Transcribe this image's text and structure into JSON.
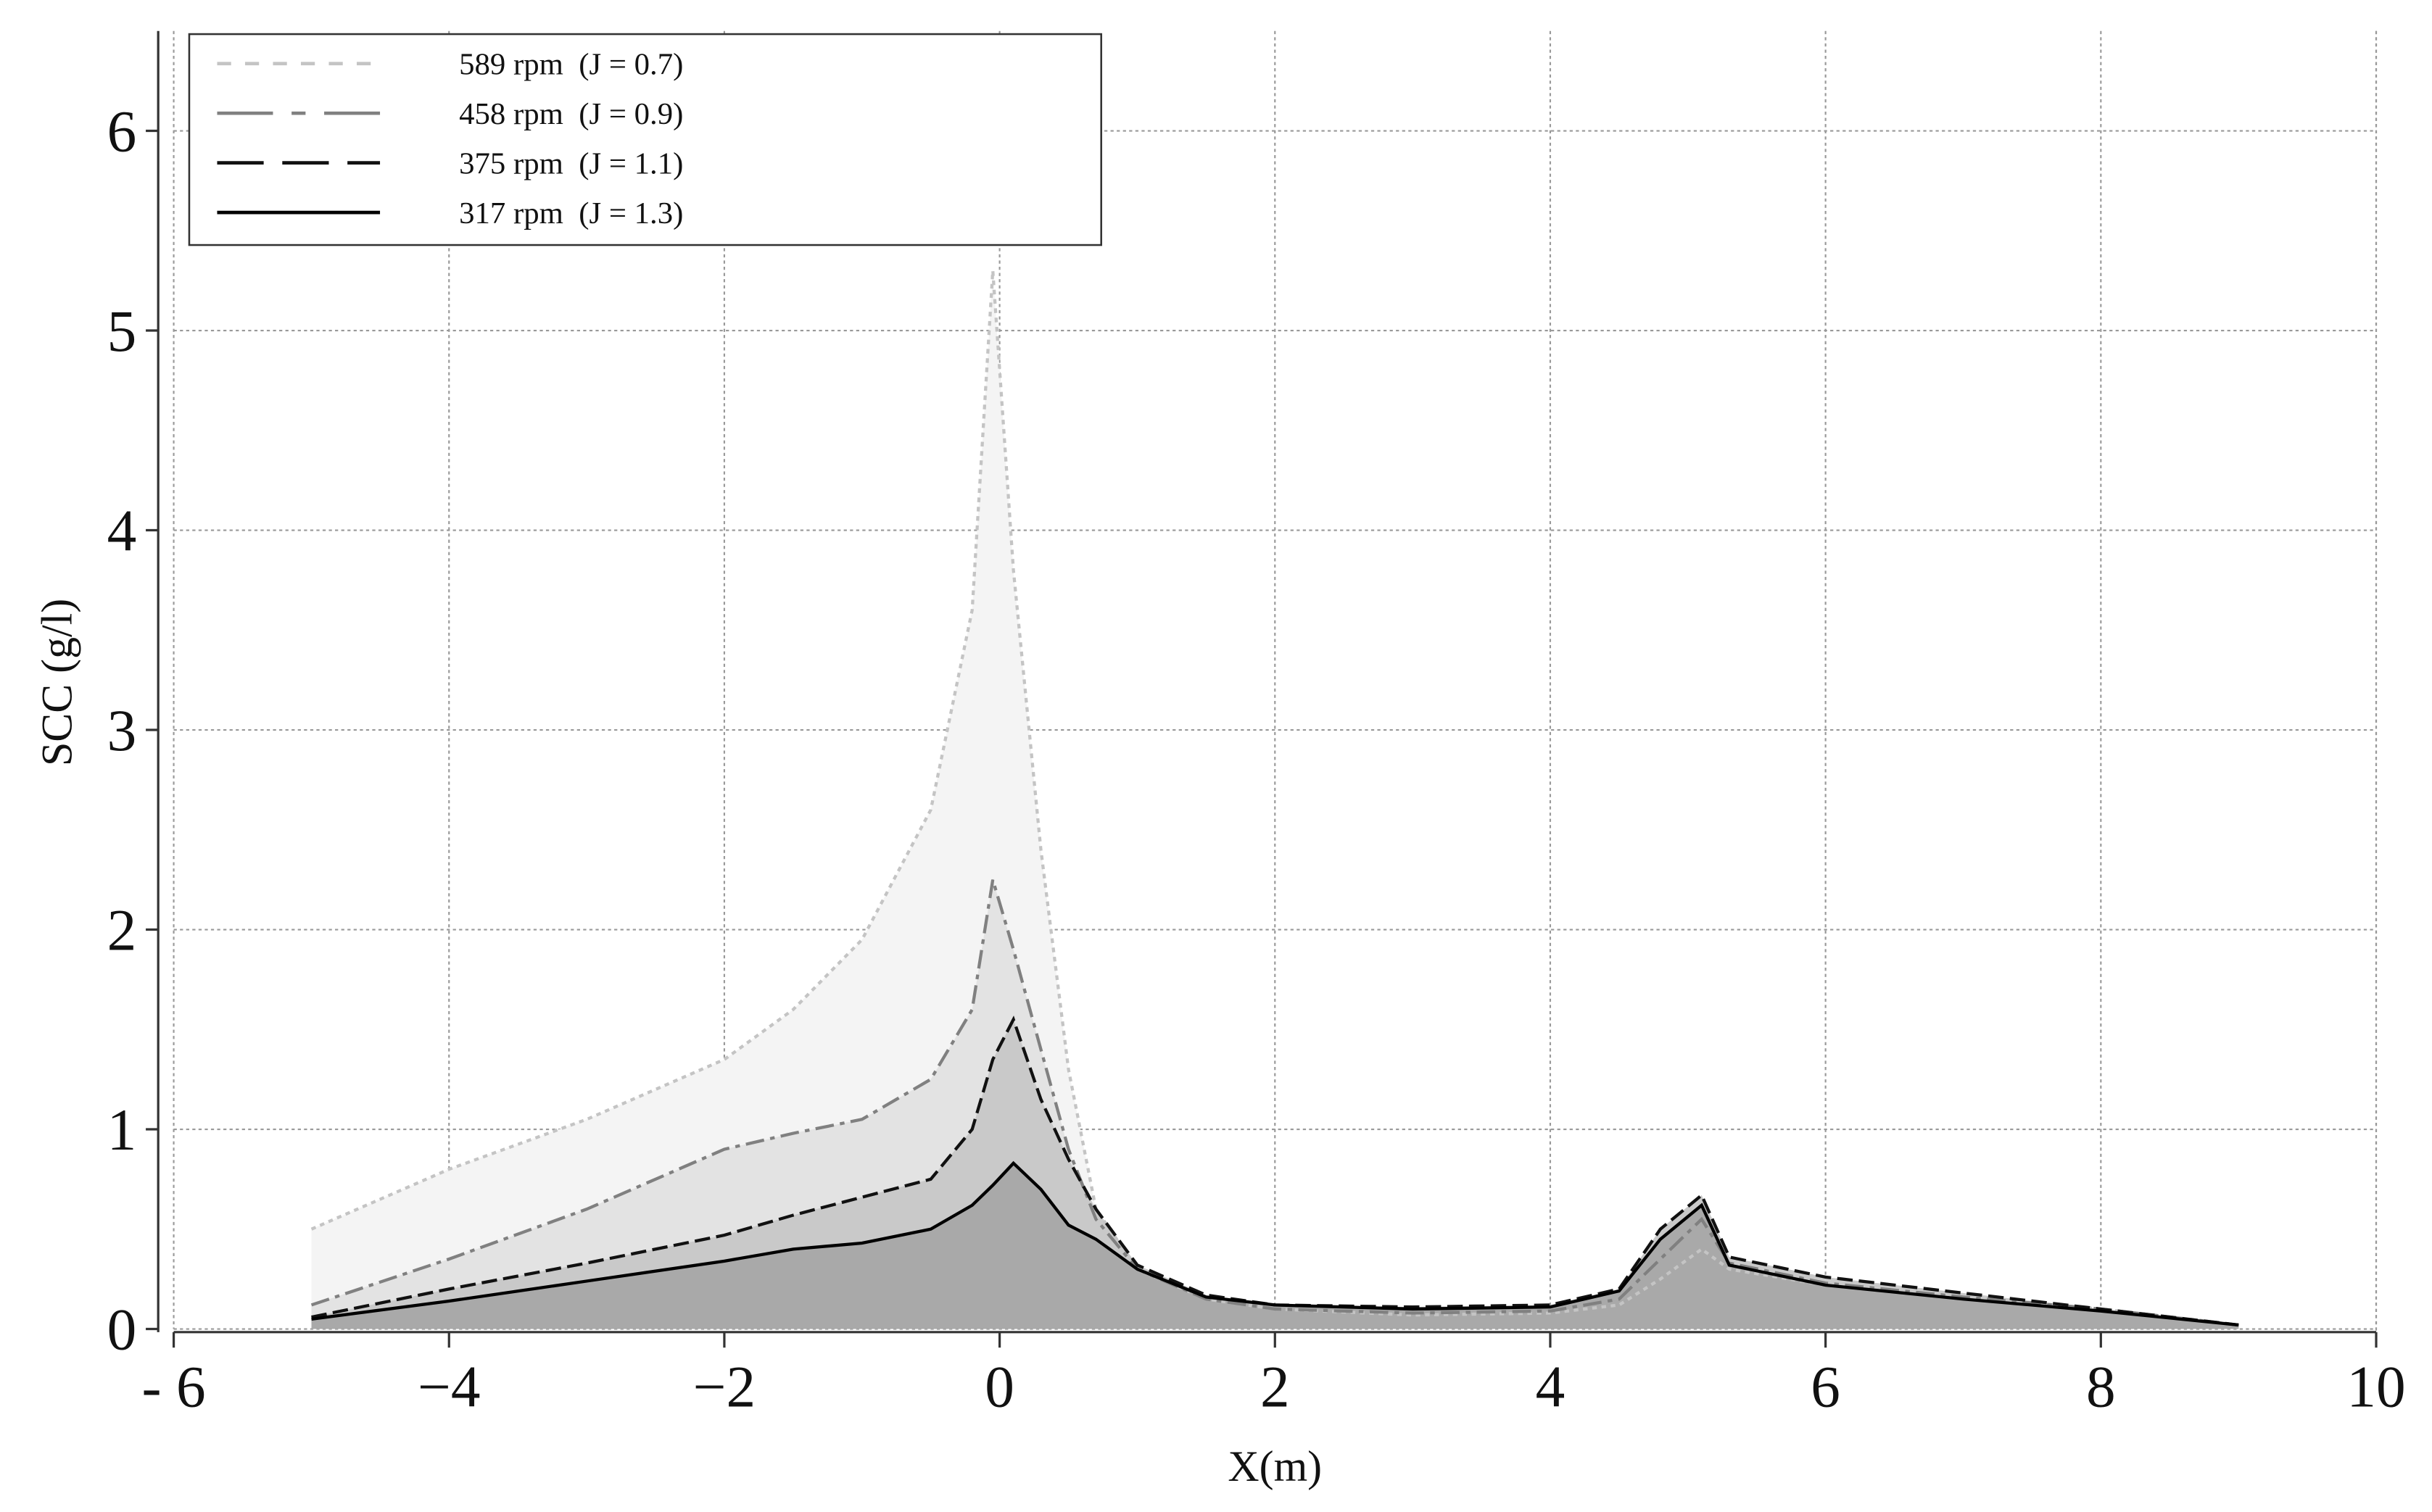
{
  "chart_data": {
    "type": "area",
    "x_label": "X(m)",
    "y_label": "SCC (g/l)",
    "x": [
      -5,
      -4,
      -3,
      -2,
      -1.5,
      -1,
      -0.5,
      -0.2,
      -0.05,
      0.1,
      0.3,
      0.5,
      0.7,
      1,
      1.5,
      2,
      3,
      4,
      4.5,
      4.8,
      5.1,
      5.3,
      6,
      7,
      8,
      9
    ],
    "xlim": [
      -6,
      10
    ],
    "ylim": [
      0,
      6.5
    ],
    "xticks": [
      {
        "value": -6,
        "label": "- 6"
      },
      {
        "value": -4,
        "label": "−4"
      },
      {
        "value": -2,
        "label": "−2"
      },
      0,
      2,
      4,
      6,
      8,
      10
    ],
    "yticks": [
      0,
      1,
      2,
      3,
      4,
      5,
      6
    ],
    "grid": true,
    "legend": "upper left",
    "series": [
      {
        "name": "589 rpm  (J = 0.7)",
        "color": "#c4c4c4",
        "fill": "#f4f4f4",
        "dash": "3 3",
        "values": [
          0.5,
          0.8,
          1.05,
          1.35,
          1.6,
          1.95,
          2.6,
          3.6,
          5.3,
          3.8,
          2.4,
          1.3,
          0.6,
          0.3,
          0.15,
          0.1,
          0.07,
          0.08,
          0.12,
          0.25,
          0.4,
          0.3,
          0.22,
          0.16,
          0.1,
          0.02
        ]
      },
      {
        "name": "458 rpm  (J = 0.9)",
        "color": "#808080",
        "fill": "#e3e3e3",
        "dash": "12 4 3 4",
        "values": [
          0.12,
          0.35,
          0.6,
          0.9,
          0.98,
          1.05,
          1.25,
          1.6,
          2.25,
          1.9,
          1.4,
          0.9,
          0.55,
          0.3,
          0.15,
          0.1,
          0.08,
          0.09,
          0.15,
          0.35,
          0.55,
          0.33,
          0.23,
          0.16,
          0.1,
          0.02
        ]
      },
      {
        "name": "375 rpm  (J = 1.1)",
        "color": "#111111",
        "fill": "#c9c9c9",
        "dash": "10 4",
        "values": [
          0.06,
          0.2,
          0.33,
          0.47,
          0.57,
          0.66,
          0.75,
          1.0,
          1.35,
          1.55,
          1.15,
          0.85,
          0.6,
          0.32,
          0.17,
          0.12,
          0.11,
          0.12,
          0.2,
          0.5,
          0.67,
          0.36,
          0.26,
          0.18,
          0.1,
          0.02
        ]
      },
      {
        "name": "317 rpm  (J = 1.3)",
        "color": "#000000",
        "fill": "#a9a9a9",
        "dash": "none",
        "values": [
          0.05,
          0.14,
          0.24,
          0.34,
          0.4,
          0.43,
          0.5,
          0.62,
          0.72,
          0.83,
          0.7,
          0.52,
          0.45,
          0.3,
          0.16,
          0.12,
          0.1,
          0.11,
          0.19,
          0.45,
          0.62,
          0.32,
          0.22,
          0.15,
          0.09,
          0.02
        ]
      }
    ]
  }
}
